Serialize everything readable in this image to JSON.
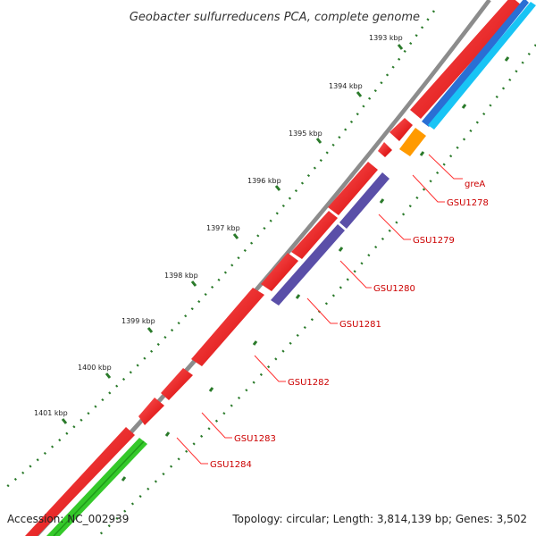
{
  "title": "Geobacter sulfurreducens PCA, complete genome",
  "footer": {
    "accession": "Accession: NC_002939",
    "topology": "Topology: circular; Length: 3,814,139 bp; Genes: 3,502"
  },
  "ticks": [
    "1393 kbp",
    "1394 kbp",
    "1395 kbp",
    "1396 kbp",
    "1397 kbp",
    "1398 kbp",
    "1399 kbp",
    "1400 kbp",
    "1401 kbp"
  ],
  "genes": [
    "greA",
    "GSU1278",
    "GSU1279",
    "GSU1280",
    "GSU1281",
    "GSU1282",
    "GSU1283",
    "GSU1284"
  ],
  "colors": {
    "backbone": "#8c8c8c",
    "cds": "#ff0000",
    "blue_track": "#2a6fd4",
    "cyan_track": "#18c4f5",
    "orange_track": "#ff9a00",
    "purple_track": "#5a4fa8",
    "green_track": "#35c92a",
    "tick": "#2a7a2a",
    "label": "#cc0000"
  }
}
